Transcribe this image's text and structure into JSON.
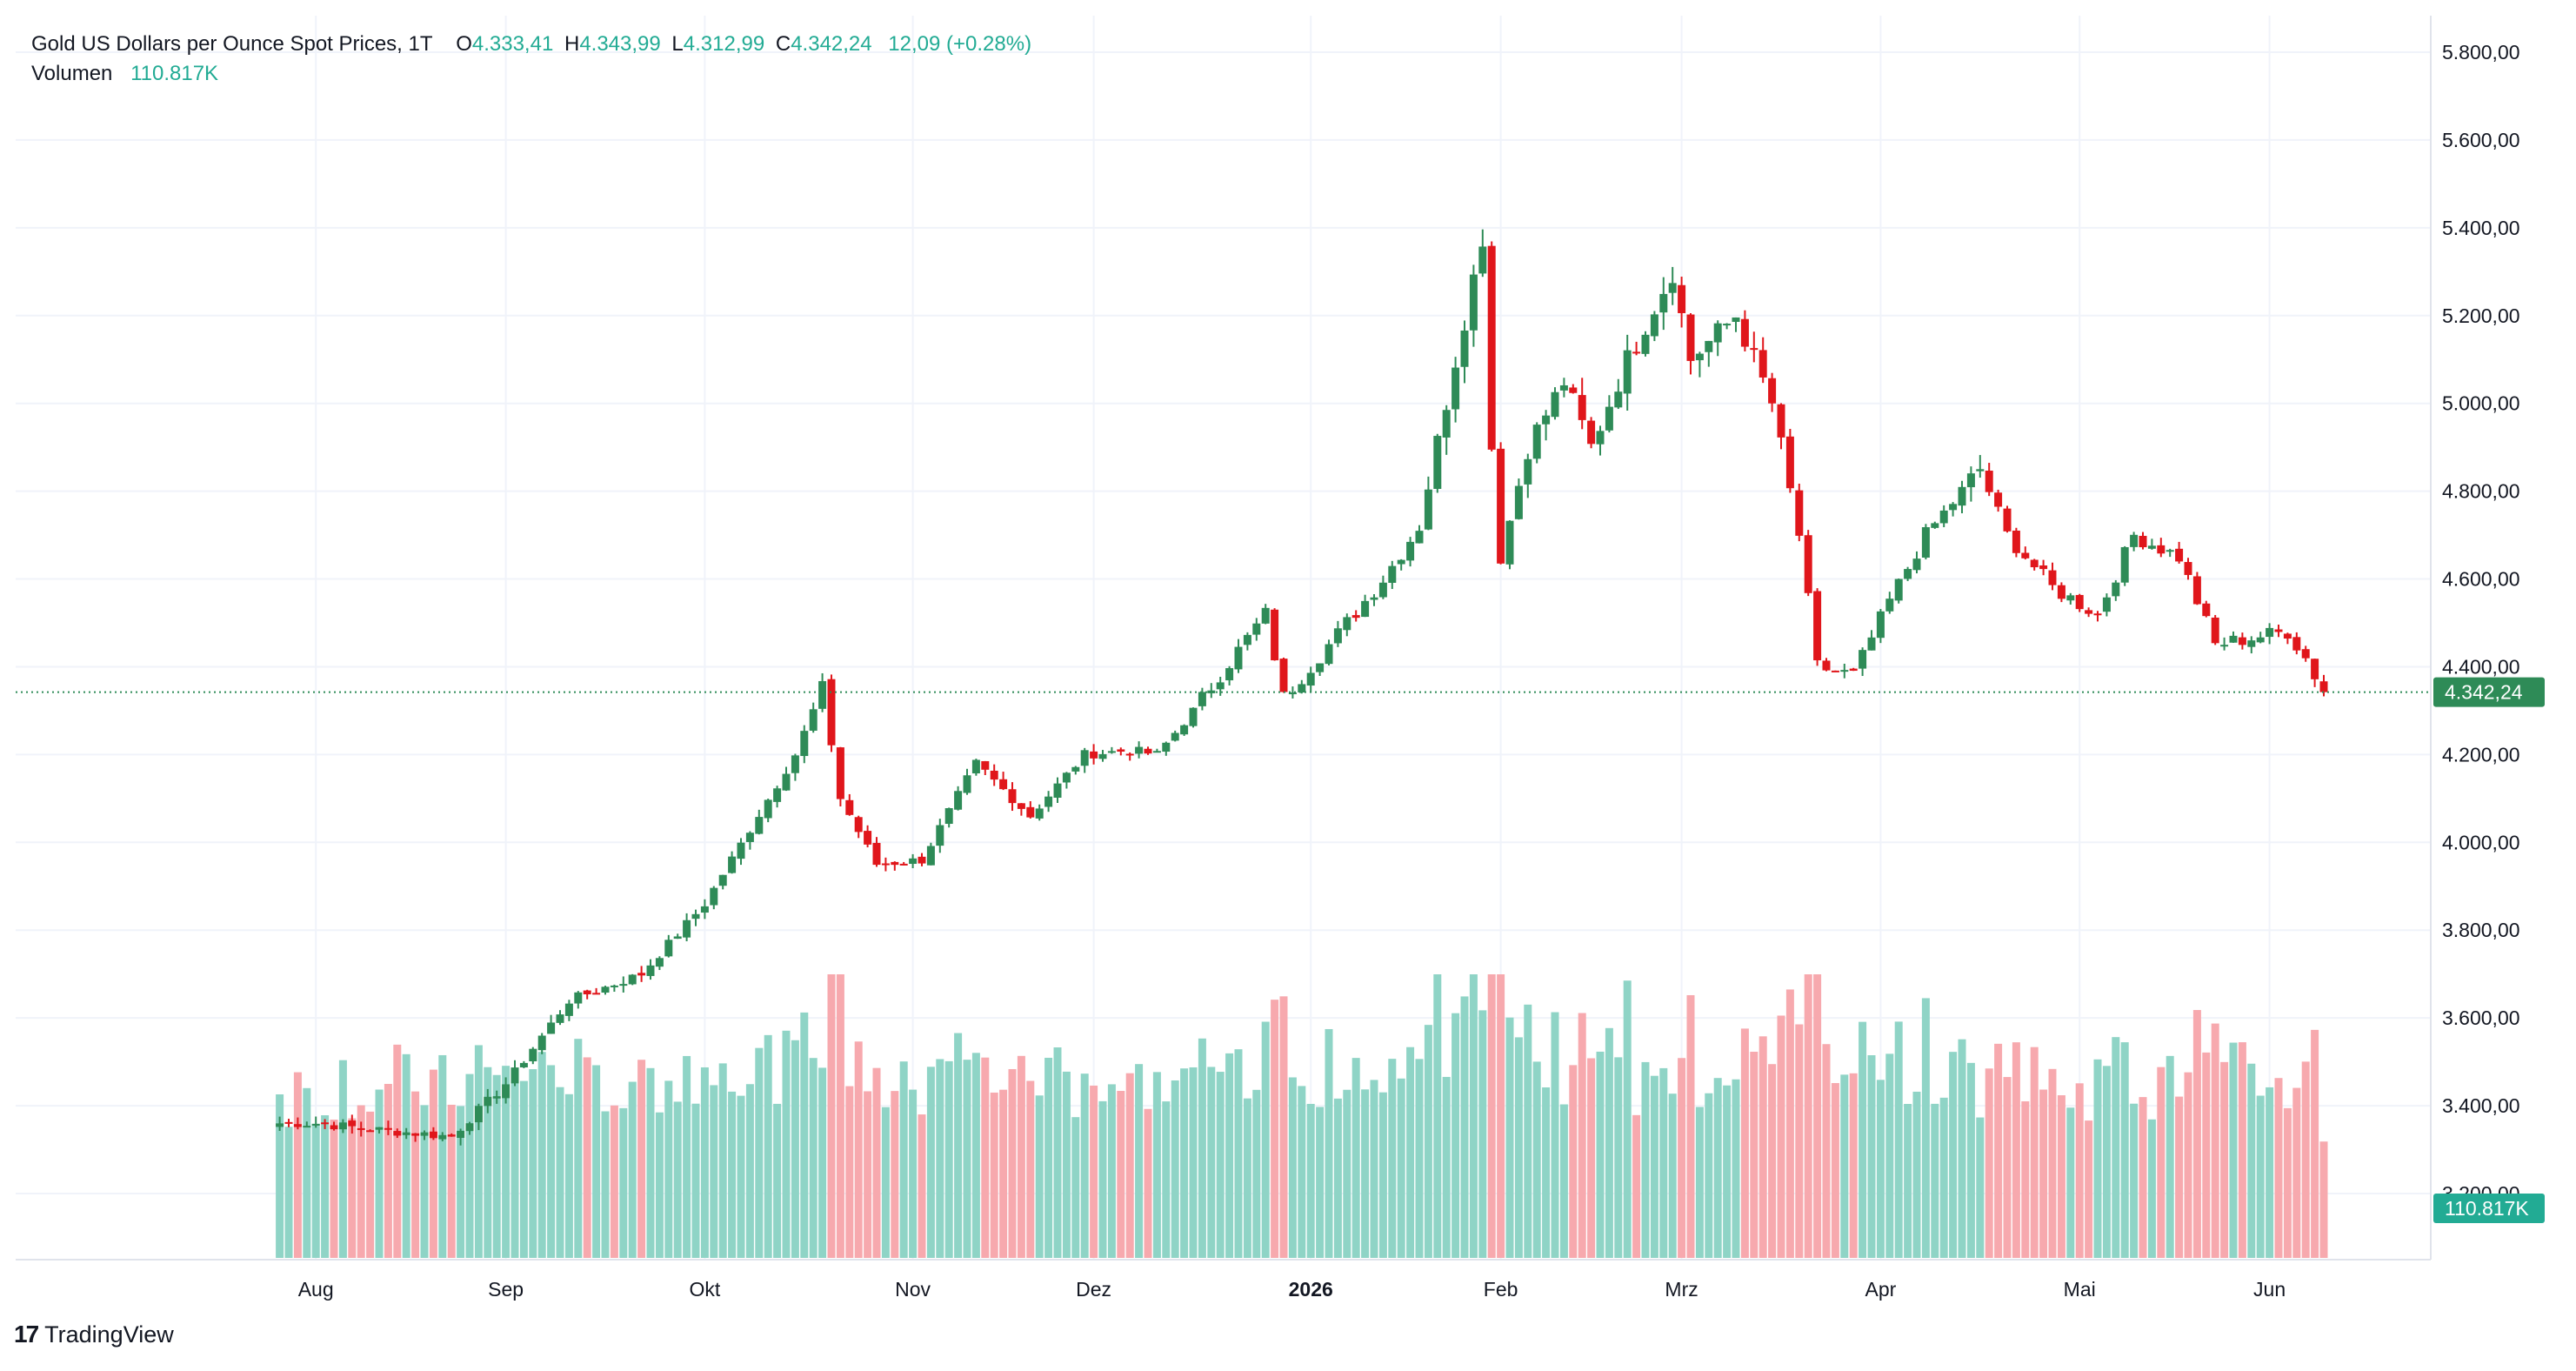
{
  "legend": {
    "symbol": "Gold US Dollars per Ounce Spot Prices, 1T",
    "open_label": "O",
    "open": "4.333,41",
    "high_label": "H",
    "high": "4.343,99",
    "low_label": "L",
    "low": "4.312,99",
    "close_label": "C",
    "close": "4.342,24",
    "change": "12,09 (+0.28%)",
    "volume_label": "Volumen",
    "volume": "110.817K"
  },
  "brand": {
    "name": "TradingView"
  },
  "colors": {
    "up": "#22ab94",
    "down": "#f23645",
    "up_candle": "#2e8b57",
    "down_candle": "#e0161b",
    "vol_up": "#8fd4c6",
    "vol_down": "#f7a9ae",
    "price_tag": "#2e8b57",
    "volume_tag": "#22ab94"
  },
  "chart_data": {
    "type": "candlestick",
    "title": "Gold US Dollars per Ounce Spot Prices, 1T",
    "x_ticks": [
      "Aug",
      "Sep",
      "Okt",
      "Nov",
      "Dez",
      "2026",
      "Feb",
      "Mrz",
      "Apr",
      "Mai",
      "Jun"
    ],
    "y_ticks": [
      "5.800,00",
      "5.600,00",
      "5.400,00",
      "5.200,00",
      "5.000,00",
      "4.800,00",
      "4.600,00",
      "4.400,00",
      "4.200,00",
      "4.000,00",
      "3.800,00",
      "3.600,00",
      "3.400,00",
      "3.200,00"
    ],
    "ylim": [
      3150,
      5830
    ],
    "last_price": 4342.24,
    "last_price_label": "4.342,24",
    "last_volume_label": "110.817K",
    "grid": true,
    "price_anchors": [
      [
        "2025-08-01",
        3360
      ],
      [
        "2025-08-12",
        3345
      ],
      [
        "2025-08-22",
        3330
      ],
      [
        "2025-09-01",
        3450
      ],
      [
        "2025-09-10",
        3640
      ],
      [
        "2025-09-22",
        3700
      ],
      [
        "2025-10-01",
        3860
      ],
      [
        "2025-10-08",
        4030
      ],
      [
        "2025-10-15",
        4200
      ],
      [
        "2025-10-20",
        4350
      ],
      [
        "2025-10-22",
        4100
      ],
      [
        "2025-10-28",
        3950
      ],
      [
        "2025-11-04",
        3960
      ],
      [
        "2025-11-12",
        4180
      ],
      [
        "2025-11-20",
        4060
      ],
      [
        "2025-11-28",
        4200
      ],
      [
        "2025-12-05",
        4210
      ],
      [
        "2025-12-10",
        4200
      ],
      [
        "2025-12-16",
        4300
      ],
      [
        "2025-12-26",
        4520
      ],
      [
        "2025-12-30",
        4330
      ],
      [
        "2026-01-06",
        4450
      ],
      [
        "2026-01-14",
        4600
      ],
      [
        "2026-01-20",
        4720
      ],
      [
        "2026-01-26",
        5100
      ],
      [
        "2026-01-29",
        5380
      ],
      [
        "2026-01-30",
        4900
      ],
      [
        "2026-02-02",
        4650
      ],
      [
        "2026-02-05",
        4900
      ],
      [
        "2026-02-11",
        5050
      ],
      [
        "2026-02-16",
        4900
      ],
      [
        "2026-02-20",
        5100
      ],
      [
        "2026-02-27",
        5300
      ],
      [
        "2026-03-03",
        5100
      ],
      [
        "2026-03-10",
        5200
      ],
      [
        "2026-03-16",
        5000
      ],
      [
        "2026-03-19",
        4700
      ],
      [
        "2026-03-23",
        4400
      ],
      [
        "2026-03-27",
        4380
      ],
      [
        "2026-04-02",
        4550
      ],
      [
        "2026-04-08",
        4700
      ],
      [
        "2026-04-16",
        4850
      ],
      [
        "2026-04-21",
        4700
      ],
      [
        "2026-04-28",
        4580
      ],
      [
        "2026-05-05",
        4520
      ],
      [
        "2026-05-11",
        4700
      ],
      [
        "2026-05-18",
        4650
      ],
      [
        "2026-05-22",
        4450
      ],
      [
        "2026-05-29",
        4470
      ],
      [
        "2026-06-03",
        4480
      ],
      [
        "2026-06-05",
        4420
      ],
      [
        "2026-06-09",
        4342
      ]
    ],
    "volume_range_k": [
      80,
      270
    ]
  }
}
